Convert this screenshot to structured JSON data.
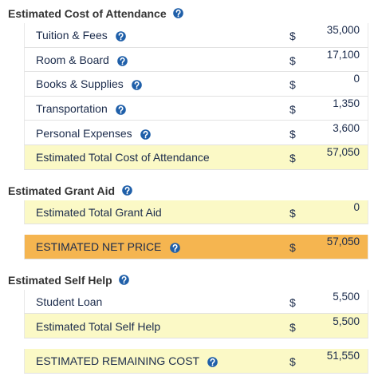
{
  "items": [
    {
      "title": "Estimated Cost of Attendance",
      "help": true,
      "rows": [
        {
          "label": "Tuition & Fees",
          "help": true,
          "currency": "$",
          "value": "35,000"
        },
        {
          "label": "Room & Board",
          "help": true,
          "currency": "$",
          "value": "17,100"
        },
        {
          "label": "Books & Supplies",
          "help": true,
          "currency": "$",
          "value": "0"
        },
        {
          "label": "Transportation",
          "help": true,
          "currency": "$",
          "value": "1,350"
        },
        {
          "label": "Personal Expenses",
          "help": true,
          "currency": "$",
          "value": "3,600"
        },
        {
          "label": "Estimated Total Cost of Attendance",
          "help": false,
          "currency": "$",
          "value": "57,050",
          "color": "#fbf9c6"
        }
      ]
    },
    {
      "title": "Estimated Grant Aid",
      "help": true,
      "rows": [
        {
          "label": "Estimated Total Grant Aid",
          "help": false,
          "currency": "$",
          "value": "0",
          "color": "#fbf9c6"
        }
      ]
    },
    {
      "rows": [
        {
          "label": "ESTIMATED NET PRICE",
          "help": true,
          "currency": "$",
          "value": "57,050",
          "color": "#f5b550"
        }
      ]
    },
    {
      "title": "Estimated Self Help",
      "help": true,
      "rows": [
        {
          "label": "Student Loan",
          "help": false,
          "currency": "$",
          "value": "5,500"
        },
        {
          "label": "Estimated Total Self Help",
          "help": false,
          "currency": "$",
          "value": "5,500",
          "color": "#fbf9c6"
        }
      ]
    },
    {
      "rows": [
        {
          "label": "ESTIMATED REMAINING COST",
          "help": true,
          "currency": "$",
          "value": "51,550",
          "color": "#fbf9c6"
        }
      ]
    }
  ]
}
